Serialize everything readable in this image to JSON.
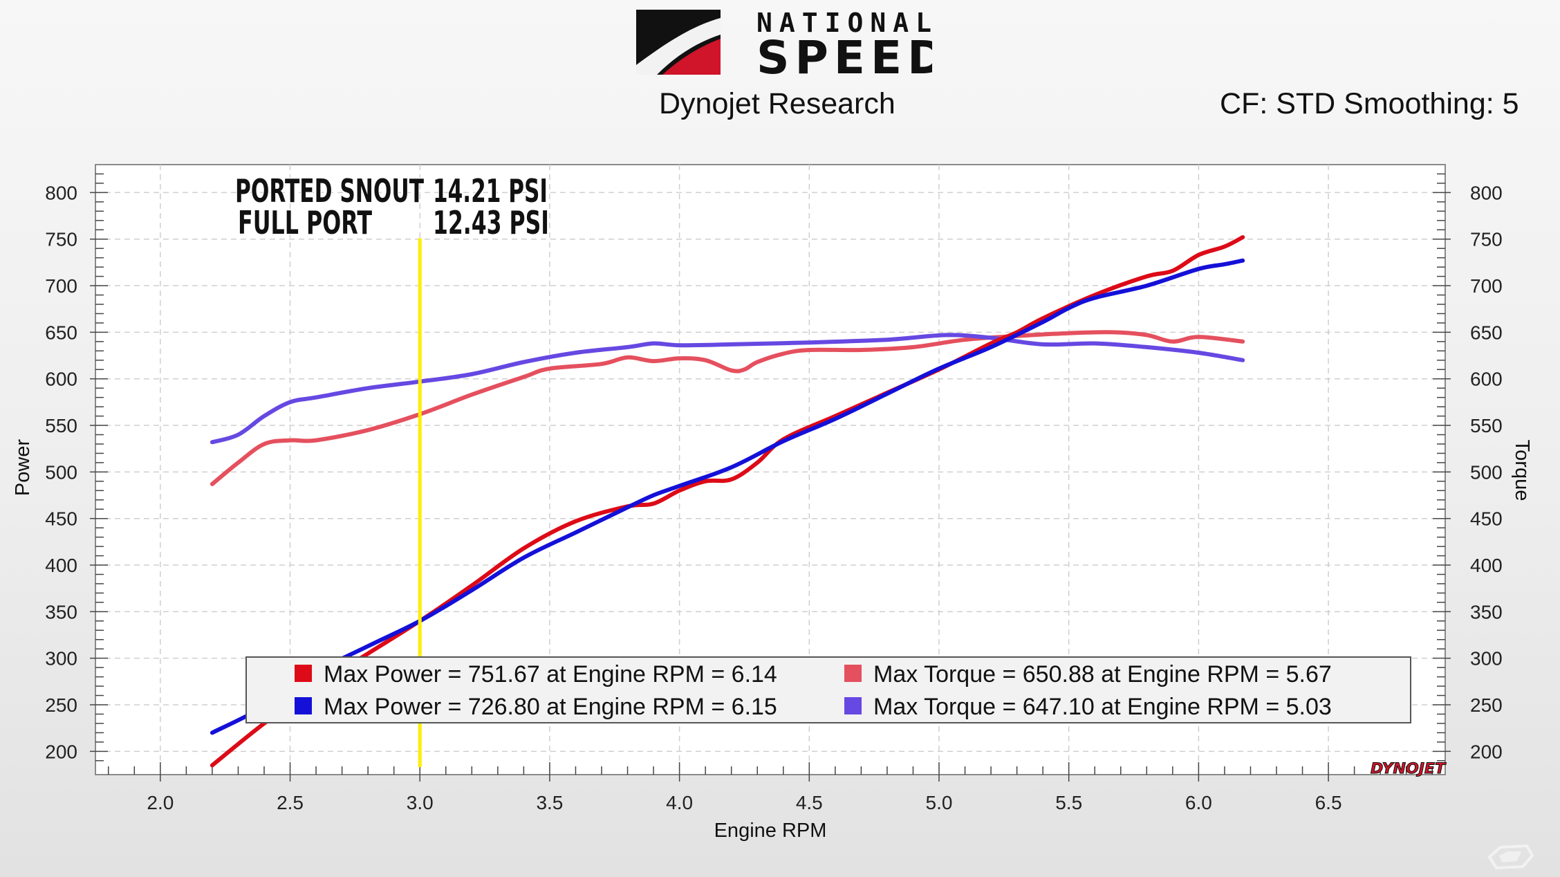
{
  "header": {
    "logo_text_top": "NATIONAL",
    "logo_text_bottom": "SPEED",
    "subtitle": "Dynojet Research",
    "settings": "CF: STD Smoothing: 5"
  },
  "annotation": {
    "line1_label": "PORTED SNOUT",
    "line1_value": "14.21 PSI",
    "line2_label": "FULL PORT",
    "line2_value": "12.43 PSI",
    "marker_rpm": 3.0,
    "marker_color": "#ffee00"
  },
  "brand_mark": "DYNOJET",
  "chart_data": {
    "type": "line",
    "xlabel": "Engine RPM",
    "ylabel_left": "Power",
    "ylabel_right": "Torque",
    "xlim": [
      1.75,
      6.95
    ],
    "ylim": [
      175,
      830
    ],
    "x_ticks": [
      "2.0",
      "2.5",
      "3.0",
      "3.5",
      "4.0",
      "4.5",
      "5.0",
      "5.5",
      "6.0",
      "6.5"
    ],
    "y_ticks": [
      "200",
      "250",
      "300",
      "350",
      "400",
      "450",
      "500",
      "550",
      "600",
      "650",
      "700",
      "750",
      "800"
    ],
    "grid": true,
    "legend_position": "bottom",
    "series": [
      {
        "key": "power_ported",
        "color": "#dd0a17",
        "legend": "Max Power = 751.67 at Engine RPM = 6.14",
        "x": [
          2.2,
          2.4,
          2.6,
          2.8,
          3.0,
          3.2,
          3.4,
          3.6,
          3.8,
          3.9,
          4.0,
          4.1,
          4.2,
          4.3,
          4.4,
          4.6,
          4.8,
          5.0,
          5.2,
          5.3,
          5.4,
          5.6,
          5.8,
          5.9,
          6.0,
          6.1,
          6.17
        ],
        "y": [
          185,
          230,
          270,
          305,
          340,
          378,
          418,
          447,
          463,
          466,
          480,
          490,
          492,
          510,
          535,
          560,
          585,
          610,
          638,
          650,
          665,
          690,
          710,
          716,
          733,
          742,
          752
        ]
      },
      {
        "key": "power_fullport",
        "color": "#1410d8",
        "legend": "Max Power = 726.80 at Engine RPM = 6.15",
        "x": [
          2.2,
          2.4,
          2.6,
          2.8,
          3.0,
          3.2,
          3.4,
          3.6,
          3.8,
          3.9,
          4.0,
          4.2,
          4.4,
          4.6,
          4.8,
          5.0,
          5.2,
          5.4,
          5.5,
          5.6,
          5.8,
          6.0,
          6.1,
          6.17
        ],
        "y": [
          220,
          248,
          285,
          313,
          340,
          373,
          408,
          435,
          462,
          475,
          485,
          505,
          533,
          557,
          584,
          611,
          634,
          661,
          676,
          687,
          700,
          718,
          723,
          727
        ]
      },
      {
        "key": "torque_ported",
        "color": "#e5505e",
        "legend": "Max Torque = 650.88 at Engine RPM = 5.67",
        "x": [
          2.2,
          2.3,
          2.4,
          2.5,
          2.6,
          2.8,
          3.0,
          3.2,
          3.4,
          3.5,
          3.7,
          3.8,
          3.9,
          4.0,
          4.1,
          4.2,
          4.25,
          4.3,
          4.4,
          4.5,
          4.7,
          4.9,
          5.1,
          5.3,
          5.5,
          5.67,
          5.8,
          5.9,
          6.0,
          6.17
        ],
        "y": [
          487,
          510,
          530,
          534,
          534,
          545,
          562,
          583,
          602,
          611,
          616,
          623,
          619,
          622,
          620,
          609,
          610,
          618,
          627,
          631,
          631,
          634,
          642,
          646,
          649,
          650,
          647,
          640,
          645,
          640
        ]
      },
      {
        "key": "torque_fullport",
        "color": "#6648e2",
        "legend": "Max Torque = 647.10 at Engine RPM = 5.03",
        "x": [
          2.2,
          2.3,
          2.4,
          2.5,
          2.6,
          2.8,
          3.0,
          3.2,
          3.4,
          3.6,
          3.8,
          3.9,
          4.0,
          4.2,
          4.5,
          4.8,
          5.03,
          5.2,
          5.4,
          5.6,
          5.8,
          6.0,
          6.17
        ],
        "y": [
          532,
          540,
          560,
          575,
          580,
          590,
          597,
          605,
          618,
          628,
          634,
          638,
          636,
          637,
          639,
          642,
          647,
          644,
          637,
          638,
          634,
          628,
          620
        ]
      }
    ]
  }
}
